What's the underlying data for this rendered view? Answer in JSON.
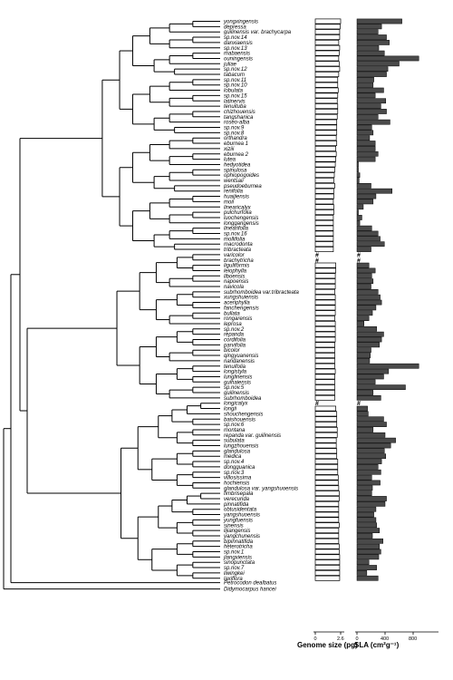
{
  "chart_data": {
    "type": "bar",
    "title": "",
    "species": [
      "yongxingensis",
      "depressa",
      "guilinensis var. brachycarpa",
      "sp.nov.14",
      "danxiaensis",
      "sp.nov.13",
      "mabaensis",
      "ouningensis",
      "juliae",
      "sp.nov.12",
      "tabacum",
      "sp.nov.11",
      "sp.nov.10",
      "lobulata",
      "sp.nov.15",
      "latinervis",
      "tenuituba",
      "chizhouensis",
      "tangshanica",
      "roseo-alba",
      "sp.nov.9",
      "sp.nov.8",
      "orthandra",
      "eburnea 1",
      "xiziii",
      "eburnea 2",
      "lutea",
      "hedyotidea",
      "spinulosa",
      "ophiopogoides",
      "wentsaii",
      "pseudoeburnea",
      "renifolia",
      "huaijiensis",
      "moii",
      "linearicalyx",
      "pulchurfolia",
      "luochengensis",
      "longgangensis",
      "linearifolia",
      "sp.nov.16",
      "mollifolia",
      "macrodonta",
      "tribracteata",
      "varicolor",
      "brachytricha",
      "liguliformis",
      "leiophylla",
      "liboensis",
      "napoensis",
      "navicola",
      "subrhomboidea var.tribracteata",
      "xungshuiensis",
      "aceriphylla",
      "fanchengensis",
      "bullata",
      "rongarensis",
      "leprosa",
      "sp.nov.2",
      "repanda",
      "cordifolia",
      "parvifolia",
      "bicolor",
      "qingyuanensis",
      "nandanensis",
      "tenuifolia",
      "longistyla",
      "lunglinensis",
      "guihaiensis",
      "sp.nov.5",
      "guilinensis",
      "subrhomboidea",
      "longicalyx",
      "longii",
      "shouchengensis",
      "baishouensis",
      "sp.nov.6",
      "montana",
      "repanda var. guilinensis",
      "subulata",
      "lungzhouensis",
      "glandulosa",
      "medica",
      "sp.nov.4",
      "dongguanica",
      "sp.nov.3",
      "villosissima",
      "hochiensis",
      "glandulosa var. yangshuoensis",
      "fimbrisepala",
      "verecunda",
      "pinnatifida",
      "obtusidentata",
      "yangshuoensis",
      "yungfuensis",
      "sinensis",
      "lijiangensis",
      "yangchunensis",
      "bipinnatifida",
      "heterotricha",
      "sp.nov.1",
      "jiangxiensis",
      "sinopunctata",
      "sp.nov.7",
      "liwingkei",
      "laxiflora"
    ],
    "outgroups": [
      "Petrocodon dealbatus",
      "Didymocarpus hancei"
    ],
    "series": [
      {
        "name": "Genome size (pg)",
        "range": [
          0,
          2.6
        ],
        "missing_symbol": "#",
        "values": [
          2.6,
          2.55,
          2.5,
          2.5,
          2.4,
          2.5,
          2.45,
          2.4,
          2.45,
          2.5,
          2.4,
          2.3,
          2.3,
          2.35,
          2.3,
          2.25,
          2.3,
          2.3,
          2.25,
          2.2,
          2.2,
          2.2,
          2.15,
          2.2,
          2.1,
          2.15,
          2.1,
          2.05,
          2.0,
          1.95,
          1.9,
          2.0,
          1.9,
          1.9,
          1.85,
          1.9,
          1.9,
          1.85,
          1.85,
          1.85,
          1.85,
          1.85,
          1.85,
          1.85,
          null,
          null,
          2.1,
          2.1,
          2.05,
          2.05,
          2.05,
          2.0,
          2.05,
          2.05,
          2.05,
          2.05,
          2.0,
          2.05,
          2.05,
          2.05,
          2.05,
          2.0,
          2.0,
          2.0,
          2.0,
          2.0,
          2.05,
          2.0,
          2.0,
          2.0,
          2.0,
          2.0,
          null,
          2.1,
          2.2,
          2.2,
          2.2,
          2.25,
          2.25,
          2.15,
          2.15,
          2.2,
          2.2,
          2.3,
          2.3,
          2.3,
          2.35,
          2.35,
          2.4,
          2.45,
          2.45,
          2.4,
          2.4,
          2.4,
          2.4,
          2.45,
          2.4,
          2.4,
          2.4,
          2.45,
          2.45,
          2.5,
          2.5,
          2.5,
          2.5,
          2.5
        ]
      },
      {
        "name": "SLA (cm²g⁻¹)",
        "ticks": [
          0,
          400,
          800
        ],
        "range": [
          0,
          900
        ],
        "missing_symbol": "#",
        "values": [
          640,
          350,
          300,
          420,
          460,
          310,
          390,
          880,
          600,
          440,
          420,
          240,
          230,
          380,
          260,
          410,
          340,
          420,
          300,
          470,
          210,
          230,
          180,
          260,
          260,
          300,
          260,
          20,
          20,
          40,
          30,
          200,
          500,
          270,
          230,
          90,
          20,
          70,
          40,
          210,
          300,
          330,
          390,
          200,
          null,
          null,
          170,
          260,
          210,
          230,
          200,
          300,
          330,
          350,
          270,
          220,
          170,
          100,
          280,
          380,
          350,
          320,
          200,
          190,
          180,
          880,
          450,
          380,
          260,
          690,
          230,
          340,
          null,
          150,
          160,
          380,
          420,
          230,
          400,
          550,
          480,
          390,
          410,
          350,
          300,
          340,
          210,
          330,
          220,
          210,
          420,
          400,
          270,
          240,
          270,
          280,
          320,
          220,
          370,
          320,
          340,
          310,
          170,
          280,
          140,
          300
        ]
      }
    ],
    "xlabel": "",
    "ylabel": "",
    "grid": false
  },
  "labels": {
    "genome_axis": "Genome size (pg)",
    "sla_axis": "SLA (cm²g⁻¹)",
    "genome_ticks": [
      "0",
      "2.6"
    ],
    "sla_ticks": [
      "0",
      "400",
      "800"
    ],
    "missing_symbol": "#"
  }
}
